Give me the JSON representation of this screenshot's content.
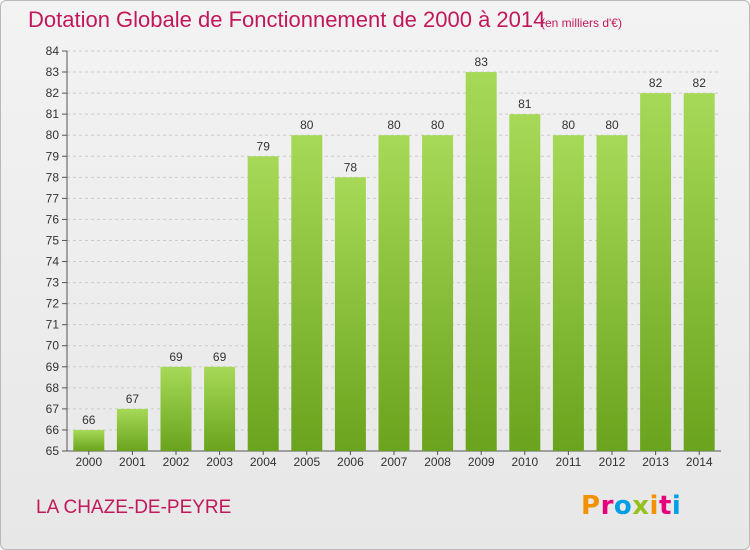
{
  "header": {
    "title": "Dotation Globale de Fonctionnement de 2000 à 2014",
    "subtitle": "(en milliers d'€)"
  },
  "footer": {
    "commune": "LA CHAZE-DE-PEYRE",
    "logo_letters": [
      "P",
      "r",
      "o",
      "x",
      "i",
      "t",
      "i"
    ]
  },
  "colors": {
    "accent": "#c2185b",
    "bar_light": "#a6d957",
    "bar_dark": "#6aa31d",
    "grid": "#cccccc",
    "logo": [
      "#f39200",
      "#e6007e",
      "#009fe3",
      "#95c11f",
      "#f39200",
      "#e6007e",
      "#009fe3"
    ]
  },
  "chart_data": {
    "type": "bar",
    "title": "Dotation Globale de Fonctionnement de 2000 à 2014",
    "subtitle": "(en milliers d'€)",
    "categories": [
      "2000",
      "2001",
      "2002",
      "2003",
      "2004",
      "2005",
      "2006",
      "2007",
      "2008",
      "2009",
      "2010",
      "2011",
      "2012",
      "2013",
      "2014"
    ],
    "values": [
      66,
      67,
      69,
      69,
      79,
      80,
      78,
      80,
      80,
      83,
      81,
      80,
      80,
      82,
      82
    ],
    "ylim": [
      65,
      84
    ],
    "yticks": [
      65,
      66,
      67,
      68,
      69,
      70,
      71,
      72,
      73,
      74,
      75,
      76,
      77,
      78,
      79,
      80,
      81,
      82,
      83,
      84
    ],
    "xlabel": "",
    "ylabel": "",
    "grid": true,
    "data_labels": true
  }
}
